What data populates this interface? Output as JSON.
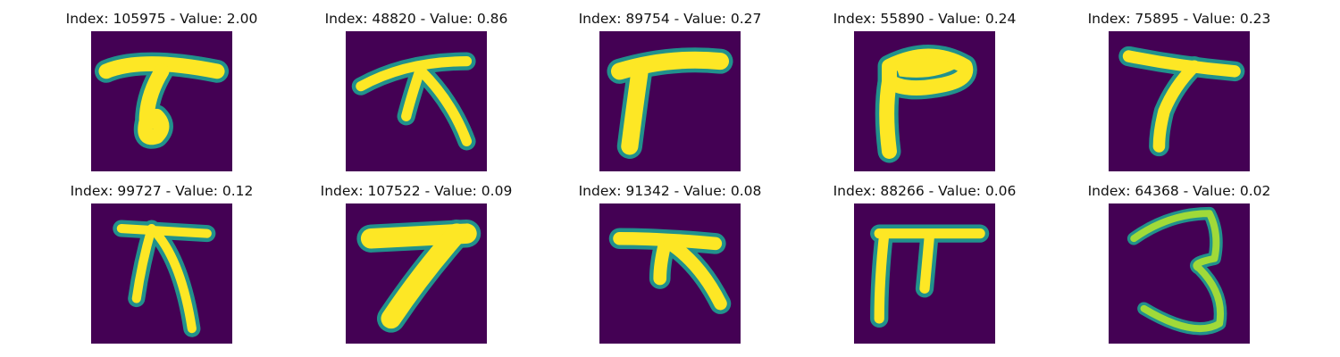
{
  "colors": {
    "background": "#440154",
    "stroke_edge": "#21918c",
    "stroke_mid": "#5ec962",
    "stroke_core": "#fde725"
  },
  "panels": [
    {
      "title": "Index: 105975 - Value: 2.00",
      "image": "handwritten character resembling a 7 with a curled tail"
    },
    {
      "title": "Index: 48820 - Value: 0.86",
      "image": "handwritten character with a horizontal stroke and two downward legs"
    },
    {
      "title": "Index: 89754 - Value: 0.27",
      "image": "thick handwritten 7-like stroke"
    },
    {
      "title": "Index: 55890 - Value: 0.24",
      "image": "thick blob-topped 7-like stroke"
    },
    {
      "title": "Index: 75895 - Value: 0.23",
      "image": "handwritten 7"
    },
    {
      "title": "Index: 99727 - Value: 0.12",
      "image": "handwritten character with a short bar and two legs"
    },
    {
      "title": "Index: 107522 - Value: 0.09",
      "image": "thick handwritten 7"
    },
    {
      "title": "Index: 91342 - Value: 0.08",
      "image": "handwritten character with a bar and splayed legs"
    },
    {
      "title": "Index: 88266 - Value: 0.06",
      "image": "handwritten character shaped like a pi"
    },
    {
      "title": "Index: 64368 - Value: 0.02",
      "image": "handwritten 3"
    }
  ]
}
